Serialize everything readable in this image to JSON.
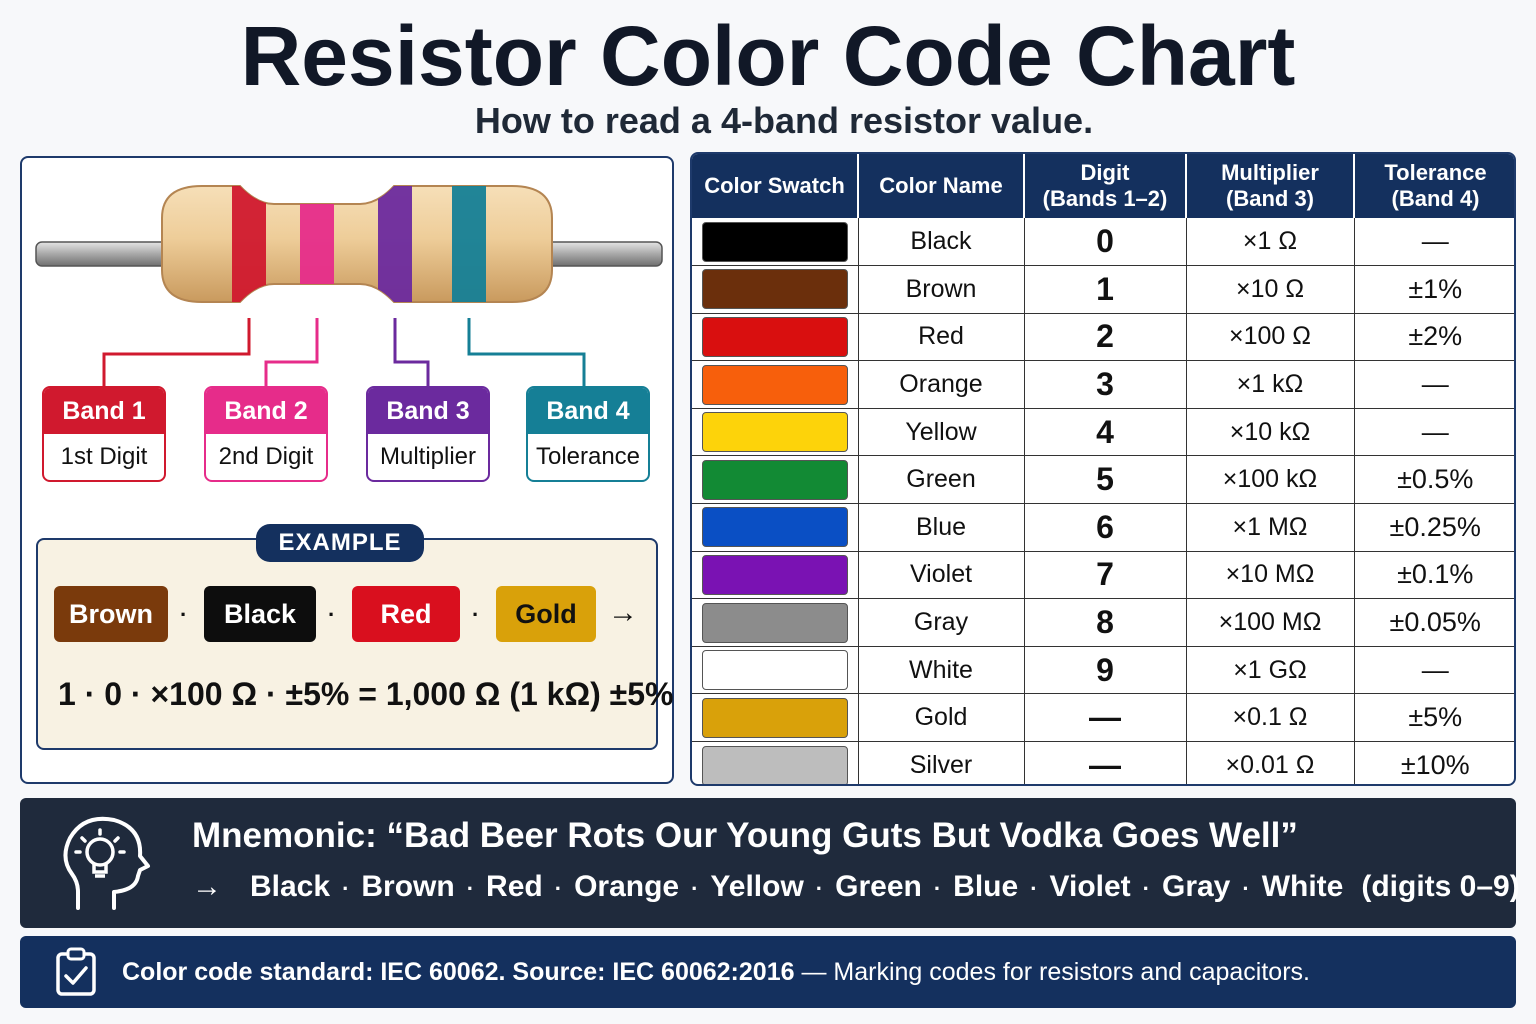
{
  "title": "Resistor Color Code Chart",
  "subtitle": "How to read a 4-band resistor value.",
  "diagram": {
    "bands": [
      {
        "label": "Band 1",
        "role": "1st Digit",
        "color": "#d0192e"
      },
      {
        "label": "Band 2",
        "role": "2nd Digit",
        "color": "#e62c8a"
      },
      {
        "label": "Band 3",
        "role": "Multiplier",
        "color": "#6b2a9e"
      },
      {
        "label": "Band 4",
        "role": "Tolerance",
        "color": "#157f96"
      }
    ]
  },
  "example": {
    "tag": "EXAMPLE",
    "chips": [
      {
        "label": "Brown",
        "bg": "#7a3a0c",
        "fg": "#ffffff"
      },
      {
        "label": "Black",
        "bg": "#0d0d0d",
        "fg": "#ffffff"
      },
      {
        "label": "Red",
        "bg": "#d90f1e",
        "fg": "#ffffff"
      },
      {
        "label": "Gold",
        "bg": "#d9a10a",
        "fg": "#111111"
      }
    ],
    "dot": "·",
    "arrow": "→",
    "formula": "1 · 0 · ×100 Ω · ±5% = 1,000 Ω (1 kΩ) ±5%"
  },
  "table": {
    "headers": [
      {
        "line1": "Color Swatch",
        "line2": ""
      },
      {
        "line1": "Color Name",
        "line2": ""
      },
      {
        "line1": "Digit",
        "line2": "(Bands 1–2)"
      },
      {
        "line1": "Multiplier",
        "line2": "(Band 3)"
      },
      {
        "line1": "Tolerance",
        "line2": "(Band 4)"
      }
    ],
    "rows": [
      {
        "swatch": "#000000",
        "name": "Black",
        "digit": "0",
        "multiplier": "×1 Ω",
        "tolerance": "—"
      },
      {
        "swatch": "#6b2f0c",
        "name": "Brown",
        "digit": "1",
        "multiplier": "×10 Ω",
        "tolerance": "±1%"
      },
      {
        "swatch": "#d90f0f",
        "name": "Red",
        "digit": "2",
        "multiplier": "×100 Ω",
        "tolerance": "±2%"
      },
      {
        "swatch": "#f75f0c",
        "name": "Orange",
        "digit": "3",
        "multiplier": "×1 kΩ",
        "tolerance": "—"
      },
      {
        "swatch": "#fdd30a",
        "name": "Yellow",
        "digit": "4",
        "multiplier": "×10 kΩ",
        "tolerance": "—"
      },
      {
        "swatch": "#128a34",
        "name": "Green",
        "digit": "5",
        "multiplier": "×100 kΩ",
        "tolerance": "±0.5%"
      },
      {
        "swatch": "#0a4fc4",
        "name": "Blue",
        "digit": "6",
        "multiplier": "×1 MΩ",
        "tolerance": "±0.25%"
      },
      {
        "swatch": "#7a12b3",
        "name": "Violet",
        "digit": "7",
        "multiplier": "×10 MΩ",
        "tolerance": "±0.1%"
      },
      {
        "swatch": "#8c8c8c",
        "name": "Gray",
        "digit": "8",
        "multiplier": "×100 MΩ",
        "tolerance": "±0.05%"
      },
      {
        "swatch": "#ffffff",
        "name": "White",
        "digit": "9",
        "multiplier": "×1 GΩ",
        "tolerance": "—"
      },
      {
        "swatch": "#d9a10a",
        "name": "Gold",
        "digit": "—",
        "multiplier": "×0.1 Ω",
        "tolerance": "±5%"
      },
      {
        "swatch": "#bdbdbd",
        "name": "Silver",
        "digit": "—",
        "multiplier": "×0.01 Ω",
        "tolerance": "±10%"
      }
    ]
  },
  "mnemonic": {
    "icon": "head-lightbulb-icon",
    "title": "Mnemonic: “Bad Beer Rots Our Young Guts But Vodka Goes Well”",
    "arrow": "→",
    "colors": [
      "Black",
      "Brown",
      "Red",
      "Orange",
      "Yellow",
      "Green",
      "Blue",
      "Violet",
      "Gray",
      "White"
    ],
    "note": "(digits 0–9)"
  },
  "footer": {
    "icon": "clipboard-check-icon",
    "bold_text": "Color code standard: IEC 60062.  Source: IEC 60062:2016",
    "rest_text": " — Marking codes for resistors and capacitors."
  }
}
